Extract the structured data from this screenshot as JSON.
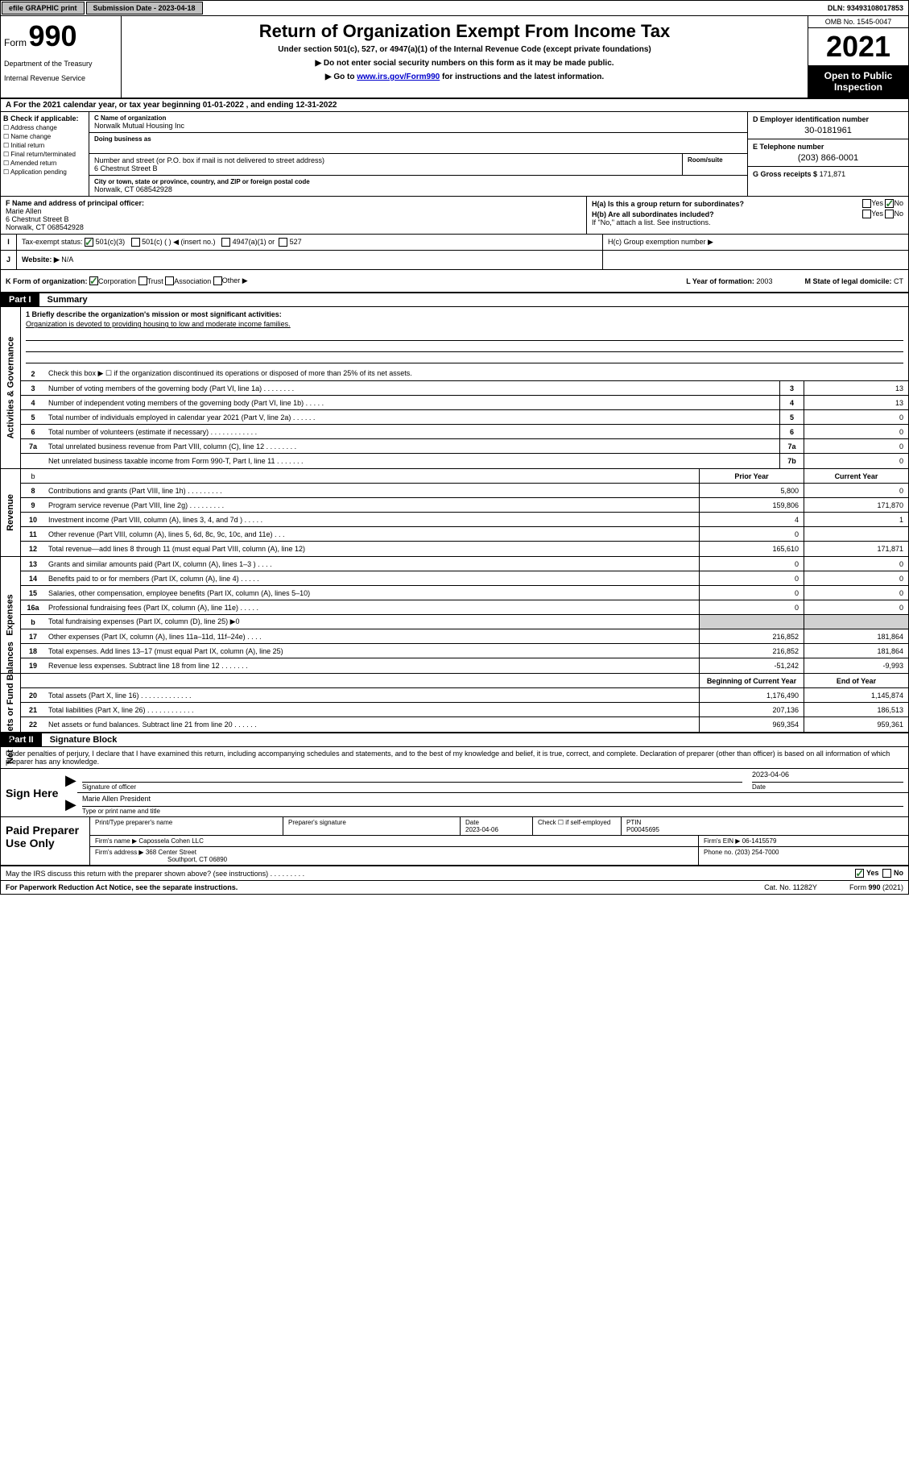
{
  "topbar": {
    "efile": "efile GRAPHIC print",
    "submission_label": "Submission Date - 2023-04-18",
    "dln": "DLN: 93493108017853"
  },
  "header": {
    "form_word": "Form",
    "form_num": "990",
    "dept": "Department of the Treasury",
    "irs": "Internal Revenue Service",
    "title": "Return of Organization Exempt From Income Tax",
    "sub": "Under section 501(c), 527, or 4947(a)(1) of the Internal Revenue Code (except private foundations)",
    "note1": "▶ Do not enter social security numbers on this form as it may be made public.",
    "note2_pre": "▶ Go to ",
    "note2_link": "www.irs.gov/Form990",
    "note2_post": " for instructions and the latest information.",
    "omb": "OMB No. 1545-0047",
    "year": "2021",
    "open": "Open to Public Inspection"
  },
  "row_a": "A For the 2021 calendar year, or tax year beginning 01-01-2022  , and ending 12-31-2022",
  "entity": {
    "b_head": "B Check if applicable:",
    "b_opts": [
      "Address change",
      "Name change",
      "Initial return",
      "Final return/terminated",
      "Amended return",
      "Application pending"
    ],
    "c_lbl": "C Name of organization",
    "c_name": "Norwalk Mutual Housing Inc",
    "dba_lbl": "Doing business as",
    "addr_lbl": "Number and street (or P.O. box if mail is not delivered to street address)",
    "addr": "6 Chestnut Street B",
    "suite_lbl": "Room/suite",
    "city_lbl": "City or town, state or province, country, and ZIP or foreign postal code",
    "city": "Norwalk, CT  068542928",
    "d_lbl": "D Employer identification number",
    "d_val": "30-0181961",
    "e_lbl": "E Telephone number",
    "e_val": "(203) 866-0001",
    "g_lbl": "G Gross receipts $",
    "g_val": "171,871"
  },
  "officer": {
    "f_lbl": "F Name and address of principal officer:",
    "name": "Marie Allen",
    "addr1": "6 Chestnut Street B",
    "addr2": "Norwalk, CT  068542928",
    "ha": "H(a)  Is this a group return for subordinates?",
    "hb": "H(b)  Are all subordinates included?",
    "hb_note": "If \"No,\" attach a list. See instructions.",
    "hc": "H(c)  Group exemption number ▶",
    "yes": "Yes",
    "no": "No"
  },
  "tax_exempt": {
    "i": "I",
    "lbl": "Tax-exempt status:",
    "opt1": "501(c)(3)",
    "opt2": "501(c) (   ) ◀ (insert no.)",
    "opt3": "4947(a)(1) or",
    "opt4": "527"
  },
  "website": {
    "j": "J",
    "lbl": "Website: ▶",
    "val": "N/A"
  },
  "k_row": {
    "lbl": "K Form of organization:",
    "opt1": "Corporation",
    "opt2": "Trust",
    "opt3": "Association",
    "opt4": "Other ▶",
    "l_lbl": "L Year of formation:",
    "l_val": "2003",
    "m_lbl": "M State of legal domicile:",
    "m_val": "CT"
  },
  "part1": {
    "header": "Part I",
    "title": "Summary",
    "mission_lbl": "1  Briefly describe the organization's mission or most significant activities:",
    "mission": "Organization is devoted to providing housing to low and moderate income families.",
    "line2": "Check this box ▶ ☐  if the organization discontinued its operations or disposed of more than 25% of its net assets."
  },
  "governance": {
    "label": "Activities & Governance",
    "rows": [
      {
        "n": "3",
        "t": "Number of voting members of the governing body (Part VI, line 1a)   .   .   .   .   .   .   .   .",
        "box": "3",
        "v": "13"
      },
      {
        "n": "4",
        "t": "Number of independent voting members of the governing body (Part VI, line 1b)   .   .   .   .   .",
        "box": "4",
        "v": "13"
      },
      {
        "n": "5",
        "t": "Total number of individuals employed in calendar year 2021 (Part V, line 2a)   .   .   .   .   .   .",
        "box": "5",
        "v": "0"
      },
      {
        "n": "6",
        "t": "Total number of volunteers (estimate if necessary)   .   .   .   .   .   .   .   .   .   .   .   .",
        "box": "6",
        "v": "0"
      },
      {
        "n": "7a",
        "t": "Total unrelated business revenue from Part VIII, column (C), line 12   .   .   .   .   .   .   .   .",
        "box": "7a",
        "v": "0"
      },
      {
        "n": "",
        "t": "Net unrelated business taxable income from Form 990-T, Part I, line 11   .   .   .   .   .   .   .",
        "box": "7b",
        "v": "0"
      }
    ]
  },
  "revenue": {
    "label": "Revenue",
    "h1": "Prior Year",
    "h2": "Current Year",
    "rows": [
      {
        "n": "8",
        "t": "Contributions and grants (Part VIII, line 1h)   .   .   .   .   .   .   .   .   .",
        "p": "5,800",
        "c": "0"
      },
      {
        "n": "9",
        "t": "Program service revenue (Part VIII, line 2g)   .   .   .   .   .   .   .   .   .",
        "p": "159,806",
        "c": "171,870"
      },
      {
        "n": "10",
        "t": "Investment income (Part VIII, column (A), lines 3, 4, and 7d )   .   .   .   .   .",
        "p": "4",
        "c": "1"
      },
      {
        "n": "11",
        "t": "Other revenue (Part VIII, column (A), lines 5, 6d, 8c, 9c, 10c, and 11e)   .   .   .",
        "p": "0",
        "c": ""
      },
      {
        "n": "12",
        "t": "Total revenue—add lines 8 through 11 (must equal Part VIII, column (A), line 12)",
        "p": "165,610",
        "c": "171,871"
      }
    ]
  },
  "expenses": {
    "label": "Expenses",
    "rows": [
      {
        "n": "13",
        "t": "Grants and similar amounts paid (Part IX, column (A), lines 1–3 )   .   .   .   .",
        "p": "0",
        "c": "0"
      },
      {
        "n": "14",
        "t": "Benefits paid to or for members (Part IX, column (A), line 4)   .   .   .   .   .",
        "p": "0",
        "c": "0"
      },
      {
        "n": "15",
        "t": "Salaries, other compensation, employee benefits (Part IX, column (A), lines 5–10)",
        "p": "0",
        "c": "0"
      },
      {
        "n": "16a",
        "t": "Professional fundraising fees (Part IX, column (A), line 11e)   .   .   .   .   .",
        "p": "0",
        "c": "0"
      },
      {
        "n": "b",
        "t": "Total fundraising expenses (Part IX, column (D), line 25) ▶0",
        "p": "",
        "c": "",
        "shaded": true
      },
      {
        "n": "17",
        "t": "Other expenses (Part IX, column (A), lines 11a–11d, 11f–24e)   .   .   .   .",
        "p": "216,852",
        "c": "181,864"
      },
      {
        "n": "18",
        "t": "Total expenses. Add lines 13–17 (must equal Part IX, column (A), line 25)",
        "p": "216,852",
        "c": "181,864"
      },
      {
        "n": "19",
        "t": "Revenue less expenses. Subtract line 18 from line 12   .   .   .   .   .   .   .",
        "p": "-51,242",
        "c": "-9,993"
      }
    ]
  },
  "netassets": {
    "label": "Net Assets or Fund Balances",
    "h1": "Beginning of Current Year",
    "h2": "End of Year",
    "rows": [
      {
        "n": "20",
        "t": "Total assets (Part X, line 16)   .   .   .   .   .   .   .   .   .   .   .   .   .",
        "p": "1,176,490",
        "c": "1,145,874"
      },
      {
        "n": "21",
        "t": "Total liabilities (Part X, line 26)   .   .   .   .   .   .   .   .   .   .   .   .",
        "p": "207,136",
        "c": "186,513"
      },
      {
        "n": "22",
        "t": "Net assets or fund balances. Subtract line 21 from line 20   .   .   .   .   .   .",
        "p": "969,354",
        "c": "959,361"
      }
    ]
  },
  "part2": {
    "header": "Part II",
    "title": "Signature Block",
    "disclaimer": "Under penalties of perjury, I declare that I have examined this return, including accompanying schedules and statements, and to the best of my knowledge and belief, it is true, correct, and complete. Declaration of preparer (other than officer) is based on all information of which preparer has any knowledge."
  },
  "sign": {
    "here": "Sign Here",
    "officer_sig": "Signature of officer",
    "date_lbl": "Date",
    "date_val": "2023-04-06",
    "name": "Marie Allen President",
    "name_lbl": "Type or print name and title"
  },
  "prep": {
    "label": "Paid Preparer Use Only",
    "c1": "Print/Type preparer's name",
    "c2": "Preparer's signature",
    "c3_lbl": "Date",
    "c3_val": "2023-04-06",
    "c4_lbl": "Check ☐ if self-employed",
    "c5_lbl": "PTIN",
    "c5_val": "P00045695",
    "firm_name_lbl": "Firm's name   ▶",
    "firm_name": "Capossela Cohen LLC",
    "firm_ein_lbl": "Firm's EIN ▶",
    "firm_ein": "06-1415579",
    "firm_addr_lbl": "Firm's address ▶",
    "firm_addr1": "368 Center Street",
    "firm_addr2": "Southport, CT  06890",
    "firm_phone_lbl": "Phone no.",
    "firm_phone": "(203) 254-7000"
  },
  "discuss": {
    "text": "May the IRS discuss this return with the preparer shown above? (see instructions)   .   .   .   .   .   .   .   .   .",
    "yes": "Yes",
    "no": "No"
  },
  "footer": {
    "left": "For Paperwork Reduction Act Notice, see the separate instructions.",
    "mid": "Cat. No. 11282Y",
    "right": "Form 990 (2021)"
  }
}
